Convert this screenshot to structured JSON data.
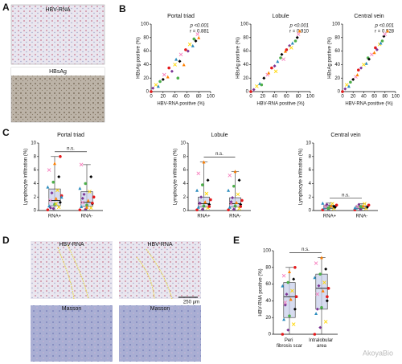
{
  "panels": {
    "labels": [
      "A",
      "B",
      "C",
      "D",
      "E"
    ],
    "images": [
      "HBV-RNA",
      "HBsAg",
      "HBV-RNA",
      "HBV-RNA",
      "Masson",
      "Masson"
    ],
    "scale_bar": "250 μm",
    "watermark": "AkoyaBio"
  },
  "chart_data": [
    {
      "type": "scatter",
      "title": "Portal triad",
      "annotations": [
        "p <0.001",
        "r = 0.881"
      ],
      "xlabel": "HBV-RNA positive (%)",
      "ylabel": "HBsAg positive (%)",
      "x": [
        0,
        3,
        8,
        12,
        15,
        20,
        22,
        28,
        30,
        35,
        40,
        42,
        45,
        48,
        50,
        55,
        58,
        62,
        65,
        70,
        72,
        75,
        78,
        80
      ],
      "values": [
        0,
        5,
        10,
        8,
        15,
        18,
        25,
        22,
        35,
        30,
        40,
        48,
        20,
        45,
        55,
        40,
        62,
        60,
        70,
        68,
        78,
        75,
        85,
        80
      ],
      "xlim": [
        0,
        100
      ],
      "ylim": [
        0,
        100
      ],
      "xticks": [
        0,
        20,
        40,
        60,
        80,
        100
      ],
      "yticks": [
        0,
        20,
        40,
        60,
        80,
        100
      ],
      "colors": [
        "#e41a1c",
        "#7b3294",
        "#ffd700",
        "#2b8cbe",
        "#4daf4a",
        "#000000",
        "#f781bf",
        "#ff7f00"
      ],
      "markers": [
        "circle",
        "diamond",
        "cross",
        "triangle"
      ]
    },
    {
      "type": "scatter",
      "title": "Lobule",
      "annotations": [
        "p <0.001",
        "r = 0.910"
      ],
      "xlabel": "HBV-RNA positive (%)",
      "ylabel": "HBsAg positive (%)",
      "x": [
        0,
        5,
        10,
        15,
        18,
        22,
        28,
        30,
        35,
        40,
        42,
        45,
        50,
        52,
        55,
        58,
        60,
        65,
        68,
        70,
        75,
        78,
        80,
        82
      ],
      "values": [
        0,
        3,
        8,
        12,
        10,
        20,
        25,
        28,
        35,
        38,
        30,
        45,
        50,
        55,
        48,
        60,
        62,
        68,
        65,
        72,
        75,
        80,
        85,
        90
      ],
      "xlim": [
        0,
        100
      ],
      "ylim": [
        0,
        100
      ],
      "xticks": [
        0,
        20,
        40,
        60,
        80,
        100
      ],
      "yticks": [
        0,
        20,
        40,
        60,
        80,
        100
      ],
      "colors": [
        "#e41a1c",
        "#7b3294",
        "#ffd700",
        "#2b8cbe",
        "#4daf4a",
        "#000000",
        "#f781bf",
        "#ff7f00"
      ],
      "markers": [
        "circle",
        "diamond",
        "cross",
        "triangle"
      ]
    },
    {
      "type": "scatter",
      "title": "Central vein",
      "annotations": [
        "p <0.001",
        "r = 0.928"
      ],
      "xlabel": "HBV-RNA positive (%)",
      "ylabel": "HBsAg positive (%)",
      "x": [
        0,
        5,
        8,
        12,
        15,
        20,
        25,
        28,
        30,
        35,
        40,
        45,
        48,
        50,
        55,
        60,
        62,
        65,
        70,
        72,
        75,
        78,
        80,
        85
      ],
      "values": [
        0,
        4,
        10,
        8,
        14,
        18,
        22,
        25,
        32,
        35,
        40,
        42,
        50,
        48,
        55,
        58,
        65,
        62,
        70,
        72,
        75,
        82,
        85,
        90
      ],
      "xlim": [
        0,
        100
      ],
      "ylim": [
        0,
        100
      ],
      "xticks": [
        0,
        20,
        40,
        60,
        80,
        100
      ],
      "yticks": [
        0,
        20,
        40,
        60,
        80,
        100
      ],
      "colors": [
        "#e41a1c",
        "#7b3294",
        "#ffd700",
        "#2b8cbe",
        "#4daf4a",
        "#000000",
        "#f781bf",
        "#ff7f00"
      ],
      "markers": [
        "circle",
        "diamond",
        "cross",
        "triangle"
      ]
    },
    {
      "type": "box",
      "title": "Portal triad",
      "annotation": "n.s.",
      "ylabel": "Lymphocyte infiltration (%)",
      "categories": [
        "RNA+",
        "RNA-"
      ],
      "groups": [
        {
          "values": [
            0.1,
            0.3,
            0.5,
            0.7,
            0.9,
            1.2,
            1.5,
            1.8,
            2.2,
            2.6,
            3.0,
            3.5,
            4.2,
            5.0,
            6.0,
            7.0,
            8.0,
            0.4,
            1.0,
            2.0
          ],
          "min": 0,
          "q1": 0.7,
          "median": 1.5,
          "q3": 3.2,
          "max": 8
        },
        {
          "values": [
            0.1,
            0.2,
            0.4,
            0.6,
            0.8,
            1.0,
            1.2,
            1.5,
            2.0,
            2.4,
            2.8,
            3.3,
            4.0,
            5.0,
            6.8,
            0.5,
            1.1,
            1.8
          ],
          "min": 0,
          "q1": 0.6,
          "median": 1.2,
          "q3": 2.8,
          "max": 6.8
        }
      ],
      "ylim": [
        0,
        10
      ],
      "yticks": [
        0,
        2,
        4,
        6,
        8,
        10
      ],
      "colors": [
        "#e41a1c",
        "#7b3294",
        "#ffd700",
        "#2b8cbe",
        "#4daf4a",
        "#000000",
        "#f781bf",
        "#ff7f00"
      ],
      "markers": [
        "circle",
        "diamond",
        "cross",
        "triangle"
      ]
    },
    {
      "type": "box",
      "title": "Lobule",
      "annotation": "n.s.",
      "ylabel": "Lymphocyte infiltration (%)",
      "categories": [
        "RNA+",
        "RNA-"
      ],
      "groups": [
        {
          "values": [
            0.1,
            0.2,
            0.4,
            0.5,
            0.7,
            0.9,
            1.0,
            1.3,
            1.6,
            2.0,
            2.5,
            3.0,
            3.8,
            4.5,
            5.5,
            7.2,
            0.6,
            1.1
          ],
          "min": 0,
          "q1": 0.5,
          "median": 1,
          "q3": 2,
          "max": 7.2
        },
        {
          "values": [
            0.1,
            0.2,
            0.3,
            0.5,
            0.7,
            0.9,
            1.0,
            1.2,
            1.5,
            1.9,
            2.4,
            3.0,
            3.6,
            4.5,
            5.2,
            5.8,
            0.6,
            1.3
          ],
          "min": 0,
          "q1": 0.5,
          "median": 1,
          "q3": 1.9,
          "max": 5.8
        }
      ],
      "ylim": [
        0,
        10
      ],
      "yticks": [
        0,
        2,
        4,
        6,
        8,
        10
      ],
      "colors": [
        "#e41a1c",
        "#7b3294",
        "#ffd700",
        "#2b8cbe",
        "#4daf4a",
        "#000000",
        "#f781bf",
        "#ff7f00"
      ],
      "markers": [
        "circle",
        "diamond",
        "cross",
        "triangle"
      ]
    },
    {
      "type": "box",
      "title": "Central vein",
      "annotation": "n.s.",
      "ylabel": "Lymphocyte infiltration (%)",
      "categories": [
        "RNA+",
        "RNA-"
      ],
      "groups": [
        {
          "values": [
            0.1,
            0.2,
            0.3,
            0.4,
            0.5,
            0.5,
            0.6,
            0.7,
            0.8,
            0.9,
            1.0,
            1.1,
            0.3,
            0.6
          ],
          "min": 0,
          "q1": 0.3,
          "median": 0.5,
          "q3": 0.8,
          "max": 1.1
        },
        {
          "values": [
            0.1,
            0.2,
            0.3,
            0.4,
            0.5,
            0.5,
            0.6,
            0.7,
            0.8,
            0.9,
            1.0,
            0.4,
            0.6
          ],
          "min": 0,
          "q1": 0.3,
          "median": 0.5,
          "q3": 0.7,
          "max": 1
        }
      ],
      "ylim": [
        0,
        10
      ],
      "yticks": [
        0,
        2,
        4,
        6,
        8,
        10
      ],
      "colors": [
        "#e41a1c",
        "#7b3294",
        "#ffd700",
        "#2b8cbe",
        "#4daf4a",
        "#000000",
        "#f781bf",
        "#ff7f00"
      ],
      "markers": [
        "circle",
        "diamond",
        "cross",
        "triangle"
      ]
    },
    {
      "type": "box",
      "annotation": "n.s.",
      "ylabel": "HBV-RNA positive (%)",
      "categories": [
        "Peri fibrosis scar",
        "Intralobular area"
      ],
      "groups": [
        {
          "values": [
            0,
            5,
            12,
            18,
            22,
            30,
            38,
            42,
            45,
            48,
            52,
            58,
            62,
            66,
            70,
            75,
            80,
            35
          ],
          "min": 0,
          "q1": 20,
          "median": 45,
          "q3": 62,
          "max": 80
        },
        {
          "values": [
            0,
            8,
            15,
            25,
            32,
            40,
            48,
            52,
            55,
            58,
            62,
            68,
            72,
            78,
            85,
            92,
            45,
            30
          ],
          "min": 0,
          "q1": 30,
          "median": 55,
          "q3": 72,
          "max": 92
        }
      ],
      "ylim": [
        0,
        100
      ],
      "yticks": [
        0,
        20,
        40,
        60,
        80,
        100
      ],
      "colors": [
        "#e41a1c",
        "#7b3294",
        "#ffd700",
        "#2b8cbe",
        "#4daf4a",
        "#000000",
        "#f781bf",
        "#ff7f00"
      ],
      "markers": [
        "circle",
        "diamond",
        "cross",
        "triangle"
      ]
    }
  ]
}
